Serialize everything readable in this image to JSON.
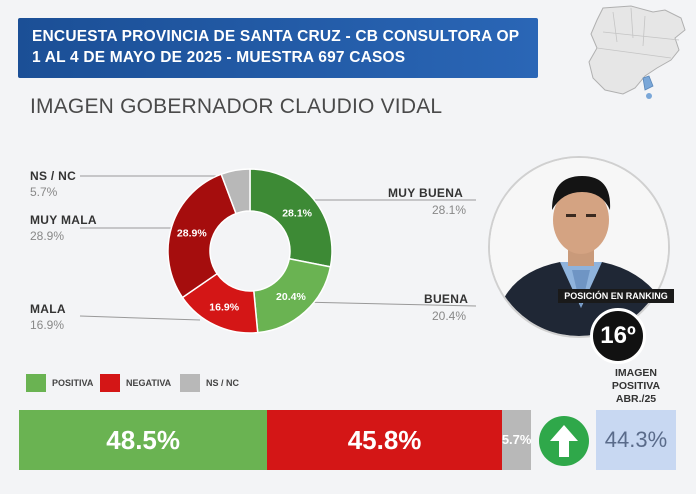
{
  "header": {
    "line1": "ENCUESTA PROVINCIA DE SANTA CRUZ - CB CONSULTORA OP",
    "line2": "1 AL 4 DE MAYO DE 2025 - MUESTRA 697 CASOS"
  },
  "title": "IMAGEN GOBERNADOR   CLAUDIO VIDAL",
  "colors": {
    "muy_buena": "#3d8a35",
    "buena": "#6ab352",
    "mala": "#d41616",
    "muy_mala": "#a50d0d",
    "nsnc": "#b8b8b8",
    "positiva": "#6ab352",
    "negativa": "#d41616"
  },
  "chart_data": [
    {
      "type": "pie",
      "categories": [
        "MUY BUENA",
        "BUENA",
        "MALA",
        "MUY MALA",
        "NS / NC"
      ],
      "values": [
        28.1,
        20.4,
        16.9,
        28.9,
        5.7
      ],
      "labels": [
        "28.1%",
        "20.4%",
        "16.9%",
        "28.9%",
        "5.7%"
      ]
    },
    {
      "type": "bar",
      "categories": [
        "POSITIVA",
        "NEGATIVA",
        "NS / NC"
      ],
      "values": [
        48.5,
        45.8,
        5.7
      ],
      "labels": [
        "48.5%",
        "45.8%",
        "5.7%"
      ]
    }
  ],
  "ranking": {
    "label": "POSICIÓN EN RANKING",
    "value": "16º"
  },
  "previous": {
    "label": "IMAGEN POSITIVA ABR./25",
    "value": "44.3%",
    "trend_icon": "up-arrow-icon"
  },
  "icons": {
    "map": "argentina-map-icon",
    "photo": "governor-photo"
  }
}
